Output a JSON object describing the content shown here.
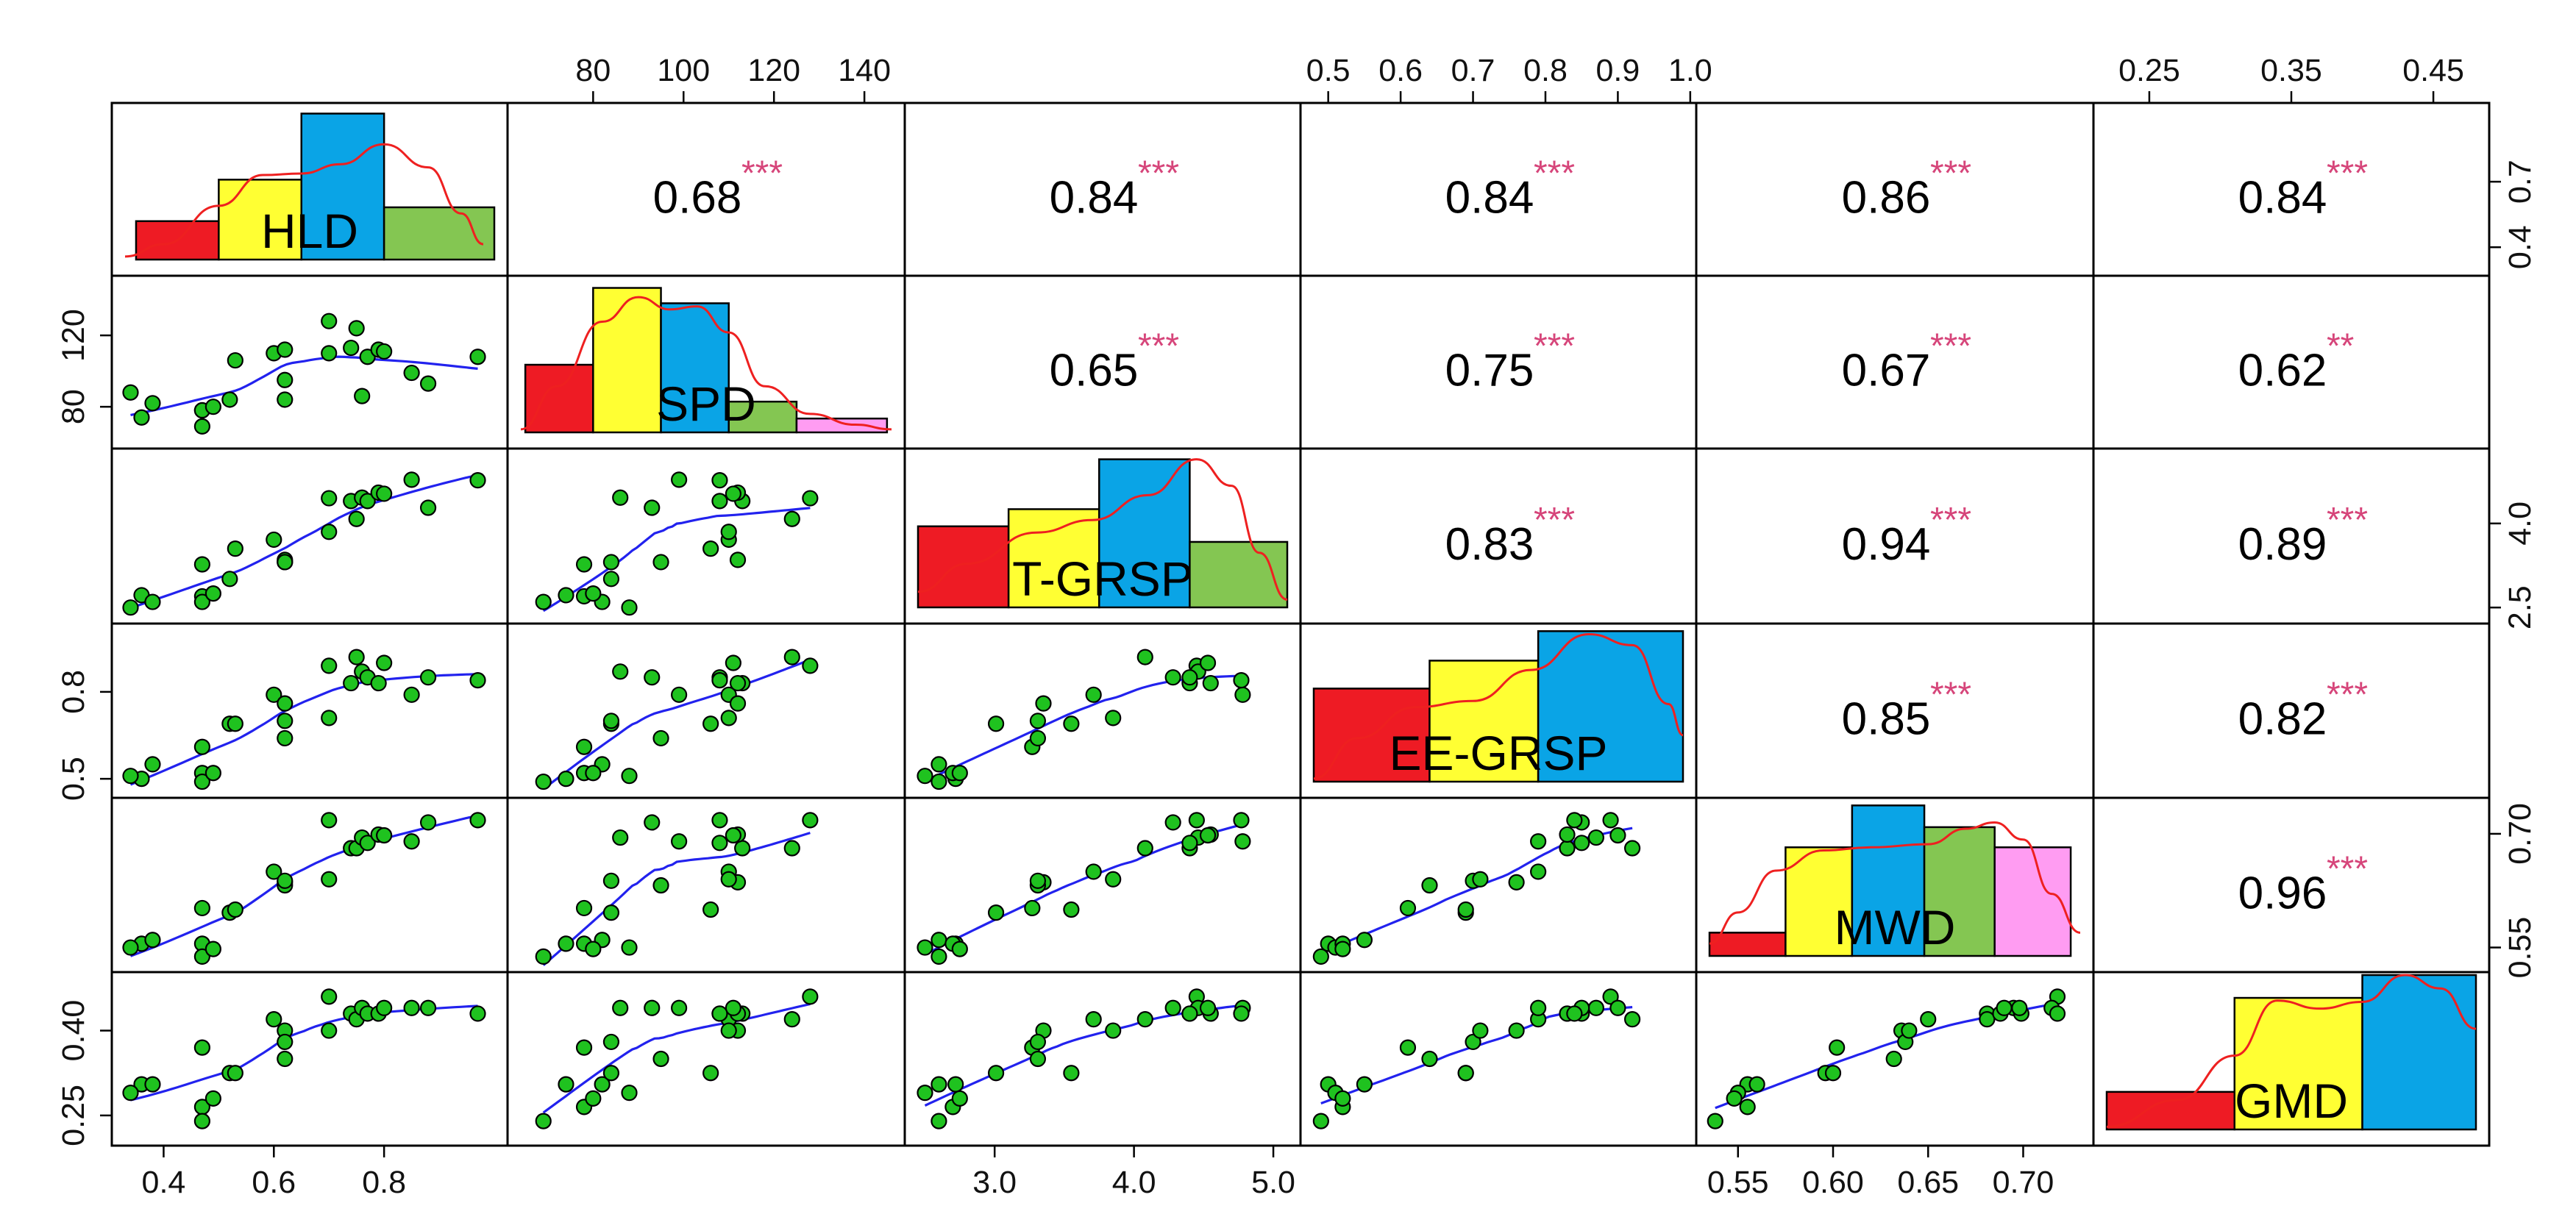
{
  "chart_data": {
    "type": "scatter-matrix",
    "title": "",
    "variables": [
      "HLD",
      "SPD",
      "T-GRSP",
      "EE-GRSP",
      "MWD",
      "GMD"
    ],
    "bar_colors": [
      "#ee1b24",
      "#ffff33",
      "#0aa4e6",
      "#84c652",
      "#ff9cf2"
    ],
    "point_color": "#1fc21f",
    "smooth_color": "#2222ee",
    "density_color": "#ee2020",
    "star_color": "#d6457a",
    "ranges": {
      "HLD": [
        0.33,
        1.0
      ],
      "SPD": [
        64,
        146
      ],
      "T-GRSP": [
        2.45,
        5.1
      ],
      "EE-GRSP": [
        0.48,
        0.99
      ],
      "MWD": [
        0.535,
        0.73
      ],
      "GMD": [
        0.22,
        0.48
      ]
    },
    "axis_ticks": {
      "bottom": {
        "HLD": [
          "0.4",
          "0.6",
          "0.8"
        ],
        "T-GRSP": [
          "3.0",
          "4.0",
          "5.0"
        ],
        "MWD": [
          "0.55",
          "0.60",
          "0.65",
          "0.70"
        ]
      },
      "top": {
        "SPD": [
          "80",
          "100",
          "120",
          "140"
        ],
        "EE-GRSP": [
          "0.5",
          "0.6",
          "0.7",
          "0.8",
          "0.9",
          "1.0"
        ],
        "GMD": [
          "0.25",
          "0.35",
          "0.45"
        ]
      },
      "left": {
        "SPD": [
          "80",
          "120"
        ],
        "EE-GRSP": [
          "0.5",
          "0.8"
        ],
        "GMD": [
          "0.25",
          "0.40"
        ]
      },
      "right": {
        "HLD": [
          "0.4",
          "0.7"
        ],
        "T-GRSP": [
          "2.5",
          "4.0"
        ],
        "MWD": [
          "0.55",
          "0.70"
        ]
      }
    },
    "correlations": [
      {
        "pair": [
          "HLD",
          "SPD"
        ],
        "r": "0.68",
        "stars": "***"
      },
      {
        "pair": [
          "HLD",
          "T-GRSP"
        ],
        "r": "0.84",
        "stars": "***"
      },
      {
        "pair": [
          "HLD",
          "EE-GRSP"
        ],
        "r": "0.84",
        "stars": "***"
      },
      {
        "pair": [
          "HLD",
          "MWD"
        ],
        "r": "0.86",
        "stars": "***"
      },
      {
        "pair": [
          "HLD",
          "GMD"
        ],
        "r": "0.84",
        "stars": "***"
      },
      {
        "pair": [
          "SPD",
          "T-GRSP"
        ],
        "r": "0.65",
        "stars": "***"
      },
      {
        "pair": [
          "SPD",
          "EE-GRSP"
        ],
        "r": "0.75",
        "stars": "***"
      },
      {
        "pair": [
          "SPD",
          "MWD"
        ],
        "r": "0.67",
        "stars": "***"
      },
      {
        "pair": [
          "SPD",
          "GMD"
        ],
        "r": "0.62",
        "stars": "**"
      },
      {
        "pair": [
          "T-GRSP",
          "EE-GRSP"
        ],
        "r": "0.83",
        "stars": "***"
      },
      {
        "pair": [
          "T-GRSP",
          "MWD"
        ],
        "r": "0.94",
        "stars": "***"
      },
      {
        "pair": [
          "T-GRSP",
          "GMD"
        ],
        "r": "0.89",
        "stars": "***"
      },
      {
        "pair": [
          "EE-GRSP",
          "MWD"
        ],
        "r": "0.85",
        "stars": "***"
      },
      {
        "pair": [
          "EE-GRSP",
          "GMD"
        ],
        "r": "0.82",
        "stars": "***"
      },
      {
        "pair": [
          "MWD",
          "GMD"
        ],
        "r": "0.96",
        "stars": "***"
      }
    ],
    "histograms": {
      "HLD": {
        "breaks": [
          0.35,
          0.5,
          0.65,
          0.8,
          1.0
        ],
        "heights": [
          0.25,
          0.52,
          0.95,
          0.34
        ],
        "density": [
          [
            0.33,
            0.02
          ],
          [
            0.4,
            0.1
          ],
          [
            0.5,
            0.35
          ],
          [
            0.58,
            0.55
          ],
          [
            0.65,
            0.56
          ],
          [
            0.72,
            0.62
          ],
          [
            0.8,
            0.75
          ],
          [
            0.88,
            0.6
          ],
          [
            0.94,
            0.3
          ],
          [
            0.98,
            0.1
          ]
        ]
      },
      "SPD": {
        "breaks": [
          65,
          80,
          95,
          110,
          125,
          145
        ],
        "heights": [
          0.44,
          0.94,
          0.84,
          0.2,
          0.09
        ],
        "density": [
          [
            64,
            0.02
          ],
          [
            72,
            0.3
          ],
          [
            82,
            0.72
          ],
          [
            90,
            0.88
          ],
          [
            97,
            0.8
          ],
          [
            103,
            0.82
          ],
          [
            110,
            0.65
          ],
          [
            118,
            0.3
          ],
          [
            128,
            0.12
          ],
          [
            138,
            0.05
          ],
          [
            146,
            0.02
          ]
        ]
      },
      "T-GRSP": {
        "breaks": [
          2.45,
          3.1,
          3.75,
          4.4,
          5.1
        ],
        "heights": [
          0.52,
          0.63,
          0.95,
          0.42
        ],
        "density": [
          [
            2.45,
            0.1
          ],
          [
            2.8,
            0.28
          ],
          [
            3.3,
            0.48
          ],
          [
            3.7,
            0.56
          ],
          [
            4.1,
            0.72
          ],
          [
            4.45,
            0.95
          ],
          [
            4.7,
            0.78
          ],
          [
            4.9,
            0.35
          ],
          [
            5.1,
            0.05
          ]
        ]
      },
      "EE-GRSP": {
        "breaks": [
          0.48,
          0.64,
          0.79,
          0.99
        ],
        "heights": [
          0.6,
          0.78,
          0.97
        ],
        "density": [
          [
            0.48,
            0.02
          ],
          [
            0.54,
            0.28
          ],
          [
            0.62,
            0.48
          ],
          [
            0.7,
            0.52
          ],
          [
            0.78,
            0.72
          ],
          [
            0.86,
            0.95
          ],
          [
            0.92,
            0.88
          ],
          [
            0.97,
            0.5
          ],
          [
            0.99,
            0.3
          ]
        ]
      },
      "MWD": {
        "breaks": [
          0.535,
          0.575,
          0.61,
          0.648,
          0.685,
          0.725
        ],
        "heights": [
          0.15,
          0.7,
          0.97,
          0.83,
          0.7
        ],
        "density": [
          [
            0.535,
            0.08
          ],
          [
            0.55,
            0.28
          ],
          [
            0.57,
            0.55
          ],
          [
            0.595,
            0.68
          ],
          [
            0.62,
            0.7
          ],
          [
            0.65,
            0.72
          ],
          [
            0.67,
            0.82
          ],
          [
            0.685,
            0.86
          ],
          [
            0.7,
            0.75
          ],
          [
            0.715,
            0.4
          ],
          [
            0.73,
            0.15
          ]
        ]
      },
      "GMD": {
        "breaks": [
          0.22,
          0.31,
          0.4,
          0.48
        ],
        "heights": [
          0.28,
          0.98,
          1.15
        ],
        "density": [
          [
            0.22,
            0.02
          ],
          [
            0.27,
            0.22
          ],
          [
            0.31,
            0.55
          ],
          [
            0.34,
            0.96
          ],
          [
            0.37,
            0.9
          ],
          [
            0.4,
            0.95
          ],
          [
            0.43,
            1.15
          ],
          [
            0.455,
            1.05
          ],
          [
            0.48,
            0.75
          ]
        ]
      }
    },
    "observations": [
      {
        "HLD": 0.36,
        "SPD": 74,
        "T-GRSP": 2.72,
        "EE-GRSP": 0.5,
        "MWD": 0.555,
        "GMD": 0.305
      },
      {
        "HLD": 0.34,
        "SPD": 88,
        "T-GRSP": 2.5,
        "EE-GRSP": 0.51,
        "MWD": 0.55,
        "GMD": 0.29
      },
      {
        "HLD": 0.38,
        "SPD": 82,
        "T-GRSP": 2.6,
        "EE-GRSP": 0.55,
        "MWD": 0.56,
        "GMD": 0.305
      },
      {
        "HLD": 0.47,
        "SPD": 78,
        "T-GRSP": 2.7,
        "EE-GRSP": 0.52,
        "MWD": 0.555,
        "GMD": 0.265
      },
      {
        "HLD": 0.47,
        "SPD": 69,
        "T-GRSP": 2.6,
        "EE-GRSP": 0.49,
        "MWD": 0.538,
        "GMD": 0.24
      },
      {
        "HLD": 0.47,
        "SPD": 78,
        "T-GRSP": 3.27,
        "EE-GRSP": 0.61,
        "MWD": 0.602,
        "GMD": 0.37
      },
      {
        "HLD": 0.49,
        "SPD": 80,
        "T-GRSP": 2.75,
        "EE-GRSP": 0.52,
        "MWD": 0.548,
        "GMD": 0.28
      },
      {
        "HLD": 0.52,
        "SPD": 84,
        "T-GRSP": 3.01,
        "EE-GRSP": 0.69,
        "MWD": 0.596,
        "GMD": 0.325
      },
      {
        "HLD": 0.53,
        "SPD": 106,
        "T-GRSP": 3.55,
        "EE-GRSP": 0.69,
        "MWD": 0.6,
        "GMD": 0.325
      },
      {
        "HLD": 0.6,
        "SPD": 110,
        "T-GRSP": 3.71,
        "EE-GRSP": 0.79,
        "MWD": 0.65,
        "GMD": 0.42
      },
      {
        "HLD": 0.62,
        "SPD": 112,
        "T-GRSP": 3.35,
        "EE-GRSP": 0.76,
        "MWD": 0.636,
        "GMD": 0.4
      },
      {
        "HLD": 0.62,
        "SPD": 95,
        "T-GRSP": 3.31,
        "EE-GRSP": 0.64,
        "MWD": 0.632,
        "GMD": 0.35
      },
      {
        "HLD": 0.62,
        "SPD": 84,
        "T-GRSP": 3.31,
        "EE-GRSP": 0.7,
        "MWD": 0.638,
        "GMD": 0.38
      },
      {
        "HLD": 0.7,
        "SPD": 128,
        "T-GRSP": 4.45,
        "EE-GRSP": 0.89,
        "MWD": 0.718,
        "GMD": 0.46
      },
      {
        "HLD": 0.7,
        "SPD": 110,
        "T-GRSP": 3.85,
        "EE-GRSP": 0.71,
        "MWD": 0.64,
        "GMD": 0.4
      },
      {
        "HLD": 0.74,
        "SPD": 113,
        "T-GRSP": 4.4,
        "EE-GRSP": 0.83,
        "MWD": 0.681,
        "GMD": 0.43
      },
      {
        "HLD": 0.75,
        "SPD": 124,
        "T-GRSP": 4.08,
        "EE-GRSP": 0.92,
        "MWD": 0.681,
        "GMD": 0.42
      },
      {
        "HLD": 0.76,
        "SPD": 86,
        "T-GRSP": 4.46,
        "EE-GRSP": 0.87,
        "MWD": 0.695,
        "GMD": 0.44
      },
      {
        "HLD": 0.77,
        "SPD": 108,
        "T-GRSP": 4.4,
        "EE-GRSP": 0.85,
        "MWD": 0.688,
        "GMD": 0.43
      },
      {
        "HLD": 0.79,
        "SPD": 112,
        "T-GRSP": 4.55,
        "EE-GRSP": 0.83,
        "MWD": 0.699,
        "GMD": 0.43
      },
      {
        "HLD": 0.8,
        "SPD": 111,
        "T-GRSP": 4.53,
        "EE-GRSP": 0.9,
        "MWD": 0.698,
        "GMD": 0.44
      },
      {
        "HLD": 0.85,
        "SPD": 99,
        "T-GRSP": 4.78,
        "EE-GRSP": 0.79,
        "MWD": 0.69,
        "GMD": 0.44
      },
      {
        "HLD": 0.88,
        "SPD": 93,
        "T-GRSP": 4.28,
        "EE-GRSP": 0.85,
        "MWD": 0.715,
        "GMD": 0.44
      },
      {
        "HLD": 0.97,
        "SPD": 108,
        "T-GRSP": 4.77,
        "EE-GRSP": 0.84,
        "MWD": 0.718,
        "GMD": 0.43
      }
    ]
  }
}
